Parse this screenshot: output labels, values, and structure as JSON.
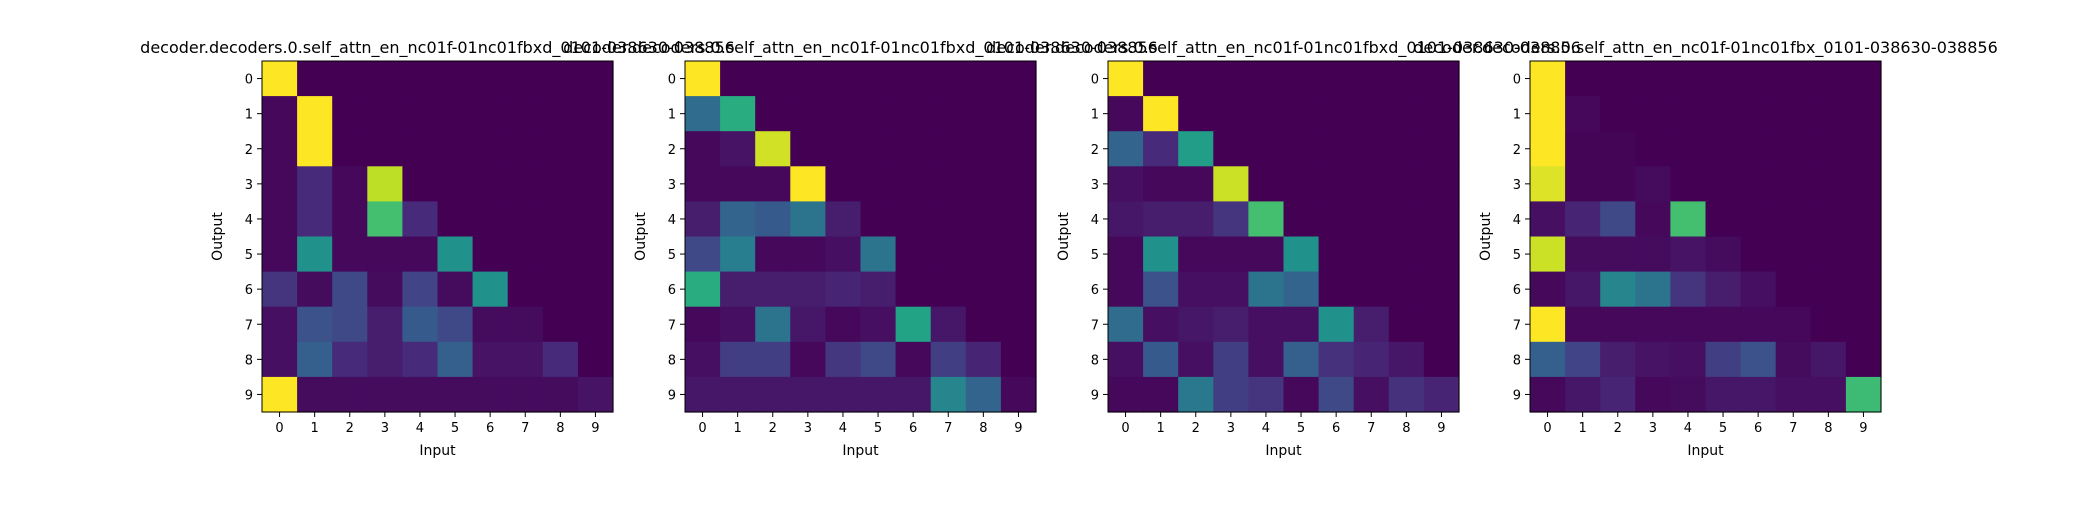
{
  "chart_data": [
    {
      "type": "heatmap",
      "title": "decoder.decoders.0.self_attn_en_nc01f-01nc01fbxd_0101-038630-038856",
      "xlabel": "Input",
      "ylabel": "Output",
      "xticks": [
        "0",
        "1",
        "2",
        "3",
        "4",
        "5",
        "6",
        "7",
        "8",
        "9"
      ],
      "yticks": [
        "0",
        "1",
        "2",
        "3",
        "4",
        "5",
        "6",
        "7",
        "8",
        "9"
      ],
      "colormap": "viridis",
      "vmin": 0,
      "vmax": 1,
      "values": [
        [
          1.0,
          0.0,
          0.0,
          0.0,
          0.0,
          0.0,
          0.0,
          0.0,
          0.0,
          0.0
        ],
        [
          0.02,
          1.0,
          0.0,
          0.0,
          0.0,
          0.0,
          0.0,
          0.0,
          0.0,
          0.0
        ],
        [
          0.02,
          1.0,
          0.0,
          0.0,
          0.0,
          0.0,
          0.0,
          0.0,
          0.0,
          0.0
        ],
        [
          0.02,
          0.12,
          0.02,
          0.9,
          0.0,
          0.0,
          0.0,
          0.0,
          0.0,
          0.0
        ],
        [
          0.02,
          0.12,
          0.02,
          0.7,
          0.12,
          0.0,
          0.0,
          0.0,
          0.0,
          0.0
        ],
        [
          0.02,
          0.5,
          0.02,
          0.02,
          0.02,
          0.5,
          0.0,
          0.0,
          0.0,
          0.0
        ],
        [
          0.15,
          0.03,
          0.22,
          0.03,
          0.2,
          0.03,
          0.5,
          0.0,
          0.0,
          0.0
        ],
        [
          0.04,
          0.25,
          0.22,
          0.08,
          0.28,
          0.22,
          0.03,
          0.03,
          0.0,
          0.0
        ],
        [
          0.04,
          0.3,
          0.12,
          0.08,
          0.12,
          0.3,
          0.05,
          0.05,
          0.12,
          0.0
        ],
        [
          1.0,
          0.03,
          0.03,
          0.03,
          0.03,
          0.03,
          0.03,
          0.03,
          0.03,
          0.05
        ]
      ]
    },
    {
      "type": "heatmap",
      "title": "decoder.decoders.0.self_attn_en_nc01f-01nc01fbxd_0101-038630-038856",
      "xlabel": "Input",
      "ylabel": "Output",
      "xticks": [
        "0",
        "1",
        "2",
        "3",
        "4",
        "5",
        "6",
        "7",
        "8",
        "9"
      ],
      "yticks": [
        "0",
        "1",
        "2",
        "3",
        "4",
        "5",
        "6",
        "7",
        "8",
        "9"
      ],
      "colormap": "viridis",
      "vmin": 0,
      "vmax": 1,
      "values": [
        [
          1.0,
          0.0,
          0.0,
          0.0,
          0.0,
          0.0,
          0.0,
          0.0,
          0.0,
          0.0
        ],
        [
          0.35,
          0.62,
          0.0,
          0.0,
          0.0,
          0.0,
          0.0,
          0.0,
          0.0,
          0.0
        ],
        [
          0.02,
          0.05,
          0.93,
          0.0,
          0.0,
          0.0,
          0.0,
          0.0,
          0.0,
          0.0
        ],
        [
          0.02,
          0.02,
          0.02,
          1.0,
          0.0,
          0.0,
          0.0,
          0.0,
          0.0,
          0.0
        ],
        [
          0.08,
          0.32,
          0.28,
          0.38,
          0.08,
          0.0,
          0.0,
          0.0,
          0.0,
          0.0
        ],
        [
          0.22,
          0.42,
          0.02,
          0.02,
          0.04,
          0.38,
          0.0,
          0.0,
          0.0,
          0.0
        ],
        [
          0.62,
          0.08,
          0.08,
          0.08,
          0.1,
          0.08,
          0.0,
          0.0,
          0.0,
          0.0
        ],
        [
          0.02,
          0.04,
          0.38,
          0.06,
          0.02,
          0.04,
          0.58,
          0.06,
          0.0,
          0.0
        ],
        [
          0.04,
          0.18,
          0.18,
          0.02,
          0.16,
          0.22,
          0.02,
          0.18,
          0.1,
          0.0
        ],
        [
          0.06,
          0.06,
          0.06,
          0.06,
          0.06,
          0.06,
          0.06,
          0.45,
          0.32,
          0.02
        ]
      ]
    },
    {
      "type": "heatmap",
      "title": "decoder.decoders.0.self_attn_en_nc01f-01nc01fbxd_0101-038630-038856",
      "xlabel": "Input",
      "ylabel": "Output",
      "xticks": [
        "0",
        "1",
        "2",
        "3",
        "4",
        "5",
        "6",
        "7",
        "8",
        "9"
      ],
      "yticks": [
        "0",
        "1",
        "2",
        "3",
        "4",
        "5",
        "6",
        "7",
        "8",
        "9"
      ],
      "colormap": "viridis",
      "vmin": 0,
      "vmax": 1,
      "values": [
        [
          1.0,
          0.0,
          0.0,
          0.0,
          0.0,
          0.0,
          0.0,
          0.0,
          0.0,
          0.0
        ],
        [
          0.02,
          1.0,
          0.0,
          0.0,
          0.0,
          0.0,
          0.0,
          0.0,
          0.0,
          0.0
        ],
        [
          0.32,
          0.12,
          0.55,
          0.0,
          0.0,
          0.0,
          0.0,
          0.0,
          0.0,
          0.0
        ],
        [
          0.04,
          0.02,
          0.02,
          0.92,
          0.0,
          0.0,
          0.0,
          0.0,
          0.0,
          0.0
        ],
        [
          0.06,
          0.08,
          0.08,
          0.15,
          0.7,
          0.0,
          0.0,
          0.0,
          0.0,
          0.0
        ],
        [
          0.02,
          0.5,
          0.02,
          0.02,
          0.02,
          0.5,
          0.0,
          0.0,
          0.0,
          0.0
        ],
        [
          0.02,
          0.25,
          0.04,
          0.04,
          0.38,
          0.32,
          0.0,
          0.0,
          0.0,
          0.0
        ],
        [
          0.35,
          0.04,
          0.06,
          0.08,
          0.04,
          0.04,
          0.5,
          0.08,
          0.0,
          0.0
        ],
        [
          0.04,
          0.28,
          0.04,
          0.18,
          0.04,
          0.3,
          0.14,
          0.1,
          0.06,
          0.0
        ],
        [
          0.02,
          0.02,
          0.4,
          0.18,
          0.15,
          0.02,
          0.22,
          0.04,
          0.14,
          0.1
        ]
      ]
    },
    {
      "type": "heatmap",
      "title": "decoder.decoders.0.self_attn_en_nc01f-01nc01fbx_0101-038630-038856",
      "xlabel": "Input",
      "ylabel": "Output",
      "xticks": [
        "0",
        "1",
        "2",
        "3",
        "4",
        "5",
        "6",
        "7",
        "8",
        "9"
      ],
      "yticks": [
        "0",
        "1",
        "2",
        "3",
        "4",
        "5",
        "6",
        "7",
        "8",
        "9"
      ],
      "colormap": "viridis",
      "vmin": 0,
      "vmax": 1,
      "values": [
        [
          1.0,
          0.0,
          0.0,
          0.0,
          0.0,
          0.0,
          0.0,
          0.0,
          0.0,
          0.0
        ],
        [
          1.0,
          0.02,
          0.0,
          0.0,
          0.0,
          0.0,
          0.0,
          0.0,
          0.0,
          0.0
        ],
        [
          1.0,
          0.01,
          0.01,
          0.0,
          0.0,
          0.0,
          0.0,
          0.0,
          0.0,
          0.0
        ],
        [
          0.95,
          0.01,
          0.01,
          0.03,
          0.0,
          0.0,
          0.0,
          0.0,
          0.0,
          0.0
        ],
        [
          0.04,
          0.1,
          0.22,
          0.02,
          0.7,
          0.0,
          0.0,
          0.0,
          0.0,
          0.0
        ],
        [
          0.92,
          0.03,
          0.03,
          0.03,
          0.05,
          0.03,
          0.0,
          0.0,
          0.0,
          0.0
        ],
        [
          0.02,
          0.06,
          0.45,
          0.38,
          0.15,
          0.08,
          0.04,
          0.0,
          0.0,
          0.0
        ],
        [
          1.0,
          0.02,
          0.02,
          0.02,
          0.02,
          0.02,
          0.02,
          0.02,
          0.0,
          0.0
        ],
        [
          0.3,
          0.2,
          0.08,
          0.05,
          0.04,
          0.18,
          0.25,
          0.03,
          0.06,
          0.0
        ],
        [
          0.02,
          0.06,
          0.1,
          0.02,
          0.03,
          0.06,
          0.06,
          0.04,
          0.04,
          0.68
        ]
      ]
    }
  ]
}
